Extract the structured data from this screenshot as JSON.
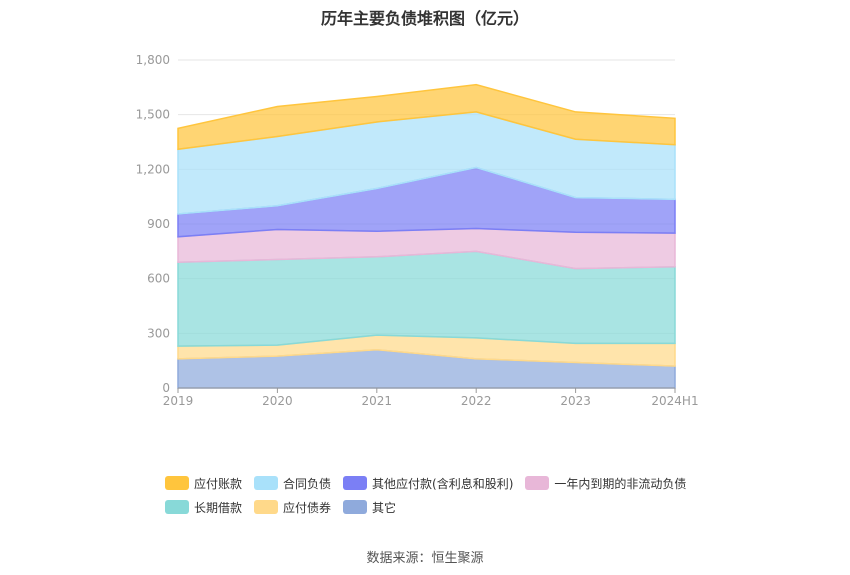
{
  "chart_data": {
    "type": "area",
    "title": "历年主要负债堆积图（亿元）",
    "categories": [
      "2019",
      "2020",
      "2021",
      "2022",
      "2023",
      "2024H1"
    ],
    "yticks": [
      "0",
      "300",
      "600",
      "900",
      "1,200",
      "1,500",
      "1,800"
    ],
    "ylim": [
      0,
      1800
    ],
    "stacked": true,
    "grid": true,
    "legend_position": "bottom",
    "series": [
      {
        "name": "其它",
        "color": "#8faadc",
        "values": [
          160,
          175,
          210,
          160,
          140,
          120
        ]
      },
      {
        "name": "应付债券",
        "color": "#ffd98a",
        "values": [
          70,
          60,
          80,
          115,
          105,
          125
        ]
      },
      {
        "name": "长期借款",
        "color": "#88d9d8",
        "values": [
          460,
          470,
          430,
          475,
          410,
          420
        ]
      },
      {
        "name": "一年内到期的非流动负债",
        "color": "#e8b7d8",
        "values": [
          140,
          165,
          140,
          125,
          200,
          185
        ]
      },
      {
        "name": "其他应付款(含利息和股利)",
        "color": "#7b7ff5",
        "values": [
          125,
          130,
          235,
          335,
          190,
          185
        ]
      },
      {
        "name": "合同负债",
        "color": "#a9e1fa",
        "values": [
          355,
          380,
          365,
          305,
          320,
          300
        ]
      },
      {
        "name": "应付账款",
        "color": "#ffc53d",
        "values": [
          115,
          165,
          140,
          150,
          150,
          145
        ]
      }
    ]
  },
  "legend_rows": [
    [
      "应付账款",
      "合同负债",
      "其他应付款(含利息和股利)",
      "一年内到期的非流动负债"
    ],
    [
      "长期借款",
      "应付债券",
      "其它"
    ]
  ],
  "source": "数据来源：恒生聚源"
}
